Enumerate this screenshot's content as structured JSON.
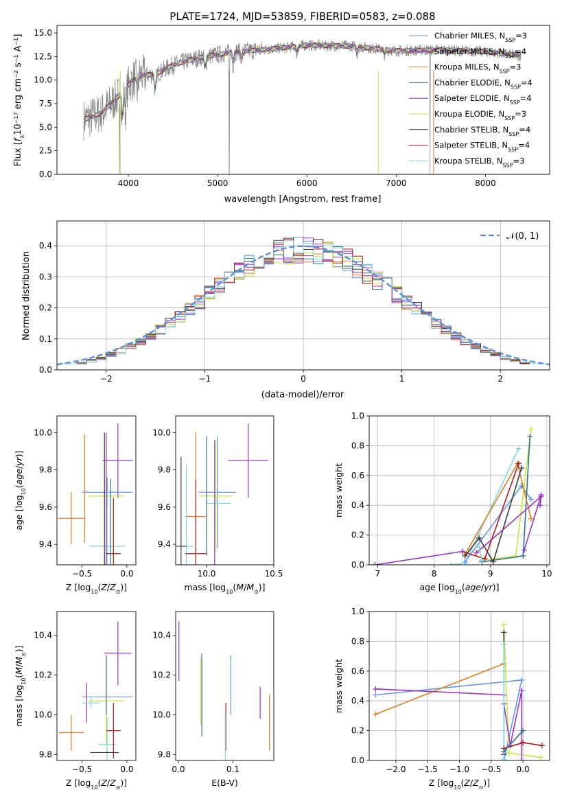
{
  "page": {
    "title": "PLATE=1724, MJD=53859, FIBERID=0583, z=0.088"
  },
  "colors": {
    "Chabrier MILES": "#6495ed",
    "Salpeter MILES": "#9932cc",
    "Kroupa MILES": "#e07b20",
    "Chabrier ELODIE": "#2f6f8f",
    "Salpeter ELODIE": "#9b2fb5",
    "Kroupa ELODIE": "#c8e63a",
    "Chabrier STELIB": "#3a3a3a",
    "Salpeter STELIB": "#b01818",
    "Kroupa STELIB": "#7fd4e0",
    "data": "#808080",
    "normal": "#5b8fd9"
  },
  "legend_spectrum": [
    {
      "key": "Chabrier MILES",
      "label": "Chabrier MILES, N",
      "sub": "SSP",
      "tail": "=3"
    },
    {
      "key": "Salpeter MILES",
      "label": "Salpeter MILES, N",
      "sub": "SSP",
      "tail": "=4"
    },
    {
      "key": "Kroupa MILES",
      "label": "Kroupa MILES, N",
      "sub": "SSP",
      "tail": "=3"
    },
    {
      "key": "Chabrier ELODIE",
      "label": "Chabrier ELODIE, N",
      "sub": "SSP",
      "tail": "=4"
    },
    {
      "key": "Salpeter ELODIE",
      "label": "Salpeter ELODIE, N",
      "sub": "SSP",
      "tail": "=4"
    },
    {
      "key": "Kroupa ELODIE",
      "label": "Kroupa ELODIE, N",
      "sub": "SSP",
      "tail": "=3"
    },
    {
      "key": "Chabrier STELIB",
      "label": "Chabrier STELIB, N",
      "sub": "SSP",
      "tail": "=4"
    },
    {
      "key": "Salpeter STELIB",
      "label": "Salpeter STELIB, N",
      "sub": "SSP",
      "tail": "=4"
    },
    {
      "key": "Kroupa STELIB",
      "label": "Kroupa STELIB, N",
      "sub": "SSP",
      "tail": "=3"
    }
  ],
  "legend_hist": {
    "label": "𝒩(0, 1)"
  },
  "chart_data": [
    {
      "type": "line",
      "title": "PLATE=1724, MJD=53859, FIBERID=0583, z=0.088",
      "xlabel": "wavelength [Angstrom, rest frame]",
      "ylabel": "Flux [f_λ 10^-17 erg cm^-2 s^-1 A^-1]",
      "xlim": [
        3200,
        8720
      ],
      "ylim": [
        0,
        15.8
      ],
      "xticks": [
        4000,
        5000,
        6000,
        7000,
        8000
      ],
      "yticks": [
        0.0,
        2.5,
        5.0,
        7.5,
        10.0,
        12.5,
        15.0
      ],
      "legend": "right",
      "continuum": [
        [
          3500,
          5.8
        ],
        [
          3700,
          6.5
        ],
        [
          3900,
          8.4
        ],
        [
          4100,
          10.5
        ],
        [
          4300,
          10.6
        ],
        [
          4500,
          11.6
        ],
        [
          4800,
          12.4
        ],
        [
          5200,
          13.0
        ],
        [
          5600,
          13.3
        ],
        [
          6000,
          13.7
        ],
        [
          6500,
          13.6
        ],
        [
          7000,
          13.1
        ],
        [
          7500,
          13.2
        ],
        [
          8000,
          13.0
        ],
        [
          8400,
          12.6
        ]
      ],
      "absorption_lines": [
        [
          3934,
          -3.0
        ],
        [
          3969,
          -2.5
        ],
        [
          4102,
          -1.8
        ],
        [
          4300,
          -2.2
        ],
        [
          4861,
          -1.5
        ],
        [
          5175,
          -1.4
        ],
        [
          5270,
          -0.8
        ],
        [
          5890,
          -1.0
        ],
        [
          6563,
          -0.8
        ],
        [
          6870,
          -0.6
        ]
      ],
      "data_gaps": [
        3900,
        5130,
        7380
      ],
      "series": [
        "Chabrier MILES",
        "Salpeter MILES",
        "Kroupa MILES",
        "Chabrier ELODIE",
        "Salpeter ELODIE",
        "Kroupa ELODIE",
        "Chabrier STELIB",
        "Salpeter STELIB",
        "Kroupa STELIB"
      ]
    },
    {
      "type": "histogram",
      "xlabel": "(data-model)/error",
      "ylabel": "Normed distribution",
      "xlim": [
        -2.5,
        2.5
      ],
      "ylim": [
        0,
        0.48
      ],
      "xticks": [
        -2,
        -1,
        0,
        1,
        2
      ],
      "yticks": [
        0.0,
        0.1,
        0.2,
        0.3,
        0.4
      ],
      "bin_width": 0.1,
      "normal_curve": {
        "mu": 0,
        "sigma": 1,
        "label": "𝒩(0, 1)"
      },
      "legend": "top-right",
      "series": [
        "Chabrier MILES",
        "Salpeter MILES",
        "Kroupa MILES",
        "Chabrier ELODIE",
        "Salpeter ELODIE",
        "Kroupa ELODIE",
        "Chabrier STELIB",
        "Salpeter STELIB",
        "Kroupa STELIB"
      ]
    },
    {
      "type": "scatter",
      "xlabel": "Z [log10(Z/Z⊙)]",
      "ylabel": "age  [log10(age/yr)]",
      "xlim": [
        -0.78,
        0.1
      ],
      "ylim": [
        9.29,
        10.09
      ],
      "xticks": [
        -0.5,
        0.0
      ],
      "yticks": [
        9.4,
        9.6,
        9.8,
        10.0
      ],
      "points": [
        {
          "s": "Kroupa MILES",
          "x": -0.62,
          "y": 9.54,
          "xe": 0.15,
          "ye": 0.14
        },
        {
          "s": "Kroupa MILES",
          "x": -0.47,
          "y": 9.7,
          "xe": 0.0,
          "ye": 0.29
        },
        {
          "s": "Salpeter MILES",
          "x": -0.1,
          "y": 9.85,
          "xe": 0.17,
          "ye": 0.2
        },
        {
          "s": "Chabrier MILES",
          "x": -0.22,
          "y": 9.68,
          "xe": 0.28,
          "ye": 0.08
        },
        {
          "s": "Kroupa ELODIE",
          "x": -0.23,
          "y": 9.66,
          "xe": 0.2,
          "ye": 0.08
        },
        {
          "s": "Kroupa STELIB",
          "x": -0.22,
          "y": 9.39,
          "xe": 0.2,
          "ye": 0.3
        },
        {
          "s": "Chabrier STELIB",
          "x": -0.25,
          "y": 9.38,
          "xe": 0.0,
          "ye": 0.62
        },
        {
          "s": "Salpeter STELIB",
          "x": -0.15,
          "y": 9.35,
          "xe": 0.08,
          "ye": 0.3
        },
        {
          "s": "Salpeter ELODIE",
          "x": -0.23,
          "y": 9.5,
          "xe": 0.0,
          "ye": 0.5
        },
        {
          "s": "Chabrier ELODIE",
          "x": -0.18,
          "y": 9.5,
          "xe": 0.0,
          "ye": 0.25
        }
      ]
    },
    {
      "type": "scatter",
      "xlabel": "mass [log10(M/M⊙)]",
      "ylabel": "",
      "xlim": [
        9.77,
        10.5
      ],
      "ylim": [
        9.29,
        10.09
      ],
      "xticks": [
        10.0,
        10.5
      ],
      "yticks": [
        9.4,
        9.6,
        9.8,
        10.0
      ],
      "points": [
        {
          "s": "Kroupa MILES",
          "x": 9.92,
          "y": 9.55,
          "xe": 0.08,
          "ye": 0.45
        },
        {
          "s": "Salpeter MILES",
          "x": 10.31,
          "y": 9.85,
          "xe": 0.15,
          "ye": 0.2
        },
        {
          "s": "Chabrier MILES",
          "x": 10.08,
          "y": 9.68,
          "xe": 0.14,
          "ye": 0.3
        },
        {
          "s": "Kroupa ELODIE",
          "x": 10.07,
          "y": 9.66,
          "xe": 0.12,
          "ye": 0.3
        },
        {
          "s": "Kroupa STELIB",
          "x": 9.85,
          "y": 9.39,
          "xe": 0.05,
          "ye": 0.44
        },
        {
          "s": "Chabrier STELIB",
          "x": 9.81,
          "y": 9.39,
          "xe": 0.04,
          "ye": 0.48
        },
        {
          "s": "Salpeter STELIB",
          "x": 9.92,
          "y": 9.35,
          "xe": 0.08,
          "ye": 0.4
        },
        {
          "s": "Kroupa STELIB",
          "x": 10.09,
          "y": 9.62,
          "xe": 0.09,
          "ye": 0.0
        },
        {
          "s": "Salpeter ELODIE",
          "x": 10.06,
          "y": 9.62,
          "xe": 0.0,
          "ye": 0.34
        },
        {
          "s": "Chabrier ELODIE",
          "x": 10.0,
          "y": 9.66,
          "xe": 0.0,
          "ye": 0.32
        }
      ]
    },
    {
      "type": "line",
      "xlabel": "age  [log10(age/yr)]",
      "ylabel": "mass weight",
      "xlim": [
        6.85,
        10.05
      ],
      "ylim": [
        0,
        1.0
      ],
      "xticks": [
        7,
        8,
        9,
        10
      ],
      "yticks": [
        0.0,
        0.2,
        0.4,
        0.6,
        0.8,
        1.0
      ],
      "grid": true,
      "lines": [
        {
          "s": "Kroupa STELIB",
          "x": [
            8.3,
            8.55,
            9.5
          ],
          "y": [
            0.0,
            0.01,
            0.78
          ]
        },
        {
          "s": "Salpeter MILES",
          "x": [
            9.6,
            9.9,
            9.88
          ],
          "y": [
            0.1,
            0.47,
            0.4
          ]
        },
        {
          "s": "Chabrier MILES",
          "x": [
            8.55,
            9.55,
            9.72
          ],
          "y": [
            0.02,
            0.53,
            0.44
          ]
        },
        {
          "s": "Kroupa ELODIE",
          "x": [
            8.85,
            9.45,
            9.72
          ],
          "y": [
            0.03,
            0.06,
            0.91
          ]
        },
        {
          "s": "Chabrier ELODIE",
          "x": [
            8.85,
            9.58,
            9.7
          ],
          "y": [
            0.02,
            0.06,
            0.86
          ]
        },
        {
          "s": "Kroupa MILES",
          "x": [
            8.55,
            9.48,
            9.72
          ],
          "y": [
            0.07,
            0.68,
            0.31
          ]
        },
        {
          "s": "Salpeter STELIB",
          "x": [
            8.5,
            8.9,
            9.5
          ],
          "y": [
            0.09,
            0.04,
            0.68
          ]
        },
        {
          "s": "Chabrier STELIB",
          "x": [
            8.55,
            8.8,
            9.05,
            9.55
          ],
          "y": [
            0.06,
            0.18,
            0.02,
            0.65
          ]
        },
        {
          "s": "Salpeter ELODIE",
          "x": [
            8.75,
            9.9
          ],
          "y": [
            0.08,
            0.46
          ]
        },
        {
          "s": "Kroupa STELIB",
          "x": [
            8.8,
            8.85
          ],
          "y": [
            0.12,
            0.03
          ]
        },
        {
          "s": "Salpeter MILES",
          "x": [
            6.95,
            8.5
          ],
          "y": [
            0.0,
            0.09
          ]
        }
      ]
    },
    {
      "type": "scatter",
      "xlabel": "Z [log10(Z/Z⊙)]",
      "ylabel": "mass [log10(M/M⊙)]",
      "xlim": [
        -0.78,
        0.1
      ],
      "ylim": [
        9.77,
        10.52
      ],
      "xticks": [
        -0.5,
        0.0
      ],
      "yticks": [
        9.8,
        10.0,
        10.2,
        10.4
      ],
      "points": [
        {
          "s": "Kroupa MILES",
          "x": -0.62,
          "y": 9.91,
          "xe": 0.14,
          "ye": 0.09
        },
        {
          "s": "Salpeter MILES",
          "x": -0.1,
          "y": 10.31,
          "xe": 0.15,
          "ye": 0.16
        },
        {
          "s": "Chabrier MILES",
          "x": -0.22,
          "y": 10.09,
          "xe": 0.28,
          "ye": 0.0
        },
        {
          "s": "Kroupa ELODIE",
          "x": -0.23,
          "y": 10.07,
          "xe": 0.2,
          "ye": 0.22
        },
        {
          "s": "Kroupa STELIB",
          "x": -0.22,
          "y": 9.85,
          "xe": 0.1,
          "ye": 0.14
        },
        {
          "s": "Chabrier STELIB",
          "x": -0.25,
          "y": 9.81,
          "xe": 0.16,
          "ye": 0.0
        },
        {
          "s": "Salpeter STELIB",
          "x": -0.15,
          "y": 9.92,
          "xe": 0.08,
          "ye": 0.14
        },
        {
          "s": "Salpeter ELODIE",
          "x": -0.45,
          "y": 10.06,
          "xe": 0.0,
          "ye": 0.1
        },
        {
          "s": "Kroupa STELIB",
          "x": -0.4,
          "y": 10.06,
          "xe": 0.1,
          "ye": 0.03
        },
        {
          "s": "Chabrier ELODIE",
          "x": -0.23,
          "y": 10.15,
          "xe": 0.0,
          "ye": 0.15
        }
      ]
    },
    {
      "type": "scatter",
      "xlabel": "E(B-V)",
      "ylabel": "",
      "xlim": [
        -0.005,
        0.175
      ],
      "ylim": [
        9.77,
        10.52
      ],
      "xticks": [
        0.0,
        0.1
      ],
      "yticks": [
        9.8,
        10.0,
        10.2,
        10.4
      ],
      "points": [
        {
          "s": "Salpeter MILES",
          "x": 0.001,
          "y": 10.32,
          "xe": 0.0,
          "ye": 0.15
        },
        {
          "s": "Chabrier ELODIE",
          "x": 0.043,
          "y": 10.1,
          "xe": 0.0,
          "ye": 0.21
        },
        {
          "s": "Kroupa ELODIE",
          "x": 0.041,
          "y": 10.12,
          "xe": 0.0,
          "ye": 0.17
        },
        {
          "s": "Chabrier MILES",
          "x": 0.096,
          "y": 10.15,
          "xe": 0.0,
          "ye": 0.15
        },
        {
          "s": "Salpeter STELIB",
          "x": 0.087,
          "y": 9.94,
          "xe": 0.0,
          "ye": 0.12
        },
        {
          "s": "Kroupa STELIB",
          "x": 0.086,
          "y": 9.86,
          "xe": 0.0,
          "ye": 0.16
        },
        {
          "s": "Kroupa MILES",
          "x": 0.167,
          "y": 9.96,
          "xe": 0.0,
          "ye": 0.14
        },
        {
          "s": "Salpeter ELODIE",
          "x": 0.15,
          "y": 10.06,
          "xe": 0.0,
          "ye": 0.08
        }
      ]
    },
    {
      "type": "line",
      "xlabel": "Z [log10(Z/Z⊙)]",
      "ylabel": "mass weight",
      "xlim": [
        -2.42,
        0.42
      ],
      "ylim": [
        0,
        1.0
      ],
      "xticks": [
        -2.0,
        -1.5,
        -1.0,
        -0.5,
        0.0
      ],
      "yticks": [
        0.0,
        0.2,
        0.4,
        0.6,
        0.8,
        1.0
      ],
      "grid": true,
      "lines": [
        {
          "s": "Chabrier MILES",
          "x": [
            -2.32,
            -0.02,
            -0.3
          ],
          "y": [
            0.44,
            0.54,
            0.0
          ]
        },
        {
          "s": "Kroupa MILES",
          "x": [
            -2.32,
            -0.3
          ],
          "y": [
            0.31,
            0.65
          ]
        },
        {
          "s": "Salpeter ELODIE",
          "x": [
            -2.32,
            -0.3
          ],
          "y": [
            0.48,
            0.44
          ]
        },
        {
          "s": "Kroupa ELODIE",
          "x": [
            -0.3,
            -0.22,
            0.28
          ],
          "y": [
            0.91,
            0.05,
            0.02
          ]
        },
        {
          "s": "Salpeter MILES",
          "x": [
            -0.3,
            -0.2,
            -0.02,
            -0.02
          ],
          "y": [
            0.38,
            0.1,
            0.47,
            0.0
          ]
        },
        {
          "s": "Chabrier STELIB",
          "x": [
            -0.3,
            -0.3
          ],
          "y": [
            0.86,
            0.04
          ]
        },
        {
          "s": "Kroupa STELIB",
          "x": [
            -0.3,
            -0.3
          ],
          "y": [
            0.78,
            0.01
          ]
        },
        {
          "s": "Salpeter STELIB",
          "x": [
            -0.3,
            0.0,
            0.3
          ],
          "y": [
            0.08,
            0.12,
            0.1
          ]
        },
        {
          "s": "Chabrier ELODIE",
          "x": [
            -0.3,
            0.0
          ],
          "y": [
            0.06,
            0.2
          ]
        }
      ]
    }
  ]
}
